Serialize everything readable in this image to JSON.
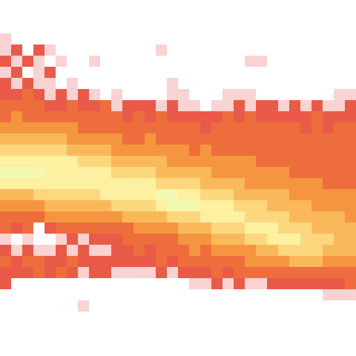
{
  "chart_data": {
    "type": "heatmap",
    "tick_labels": false,
    "grid": false,
    "xlim": [
      0,
      32
    ],
    "ylim": [
      0,
      32
    ],
    "color_range": [
      0,
      9
    ],
    "cells": [
      [
        0,
        0,
        0,
        0,
        0,
        0,
        0,
        0,
        0,
        0,
        0,
        0,
        0,
        0,
        0,
        0,
        0,
        0,
        0,
        0,
        0,
        0,
        0,
        0,
        0,
        0,
        0,
        0,
        0,
        0,
        0,
        0
      ],
      [
        0,
        0,
        0,
        0,
        0,
        0,
        0,
        0,
        0,
        0,
        0,
        0,
        0,
        0,
        0,
        0,
        0,
        0,
        0,
        0,
        0,
        0,
        0,
        0,
        0,
        0,
        0,
        0,
        0,
        0,
        0,
        0
      ],
      [
        0,
        0,
        0,
        0,
        0,
        0,
        0,
        0,
        0,
        0,
        0,
        0,
        0,
        0,
        0,
        0,
        0,
        0,
        0,
        0,
        0,
        0,
        0,
        0,
        0,
        0,
        0,
        0,
        0,
        0,
        0,
        0
      ],
      [
        1,
        0,
        0,
        0,
        0,
        0,
        0,
        0,
        0,
        0,
        0,
        0,
        0,
        0,
        0,
        0,
        0,
        0,
        0,
        0,
        0,
        0,
        0,
        0,
        0,
        0,
        0,
        0,
        0,
        0,
        0,
        0
      ],
      [
        1,
        2,
        0,
        2,
        1,
        0,
        0,
        0,
        0,
        0,
        0,
        0,
        0,
        0,
        1,
        0,
        0,
        0,
        0,
        0,
        0,
        0,
        0,
        0,
        0,
        0,
        0,
        0,
        0,
        0,
        0,
        0
      ],
      [
        2,
        1,
        2,
        1,
        0,
        1,
        0,
        0,
        1,
        0,
        0,
        0,
        0,
        0,
        0,
        0,
        0,
        0,
        0,
        0,
        0,
        0,
        1,
        1,
        0,
        0,
        0,
        0,
        0,
        0,
        0,
        0
      ],
      [
        1,
        2,
        0,
        1,
        2,
        0,
        0,
        0,
        0,
        0,
        0,
        0,
        0,
        0,
        0,
        0,
        0,
        0,
        0,
        0,
        0,
        0,
        0,
        0,
        0,
        0,
        0,
        0,
        0,
        0,
        0,
        0
      ],
      [
        2,
        1,
        2,
        1,
        1,
        0,
        1,
        0,
        0,
        0,
        0,
        0,
        0,
        0,
        0,
        1,
        0,
        0,
        0,
        0,
        0,
        0,
        0,
        0,
        0,
        0,
        0,
        0,
        0,
        0,
        0,
        0
      ],
      [
        2,
        2,
        3,
        2,
        1,
        2,
        1,
        2,
        1,
        0,
        1,
        0,
        0,
        0,
        0,
        1,
        1,
        0,
        0,
        0,
        1,
        1,
        1,
        0,
        0,
        0,
        0,
        0,
        0,
        0,
        1,
        1
      ],
      [
        3,
        3,
        3,
        3,
        2,
        2,
        3,
        2,
        2,
        3,
        1,
        2,
        2,
        2,
        1,
        2,
        1,
        1,
        0,
        1,
        1,
        2,
        1,
        2,
        2,
        1,
        2,
        1,
        2,
        1,
        1,
        2
      ],
      [
        3,
        4,
        3,
        3,
        3,
        3,
        3,
        3,
        3,
        3,
        3,
        2,
        3,
        2,
        3,
        2,
        2,
        2,
        2,
        2,
        3,
        2,
        3,
        2,
        2,
        2,
        2,
        2,
        3,
        2,
        2,
        2
      ],
      [
        4,
        4,
        4,
        4,
        4,
        4,
        4,
        3,
        3,
        3,
        3,
        3,
        3,
        3,
        3,
        3,
        3,
        3,
        2,
        3,
        3,
        3,
        3,
        3,
        3,
        3,
        3,
        2,
        3,
        2,
        3,
        3
      ],
      [
        5,
        5,
        5,
        5,
        5,
        5,
        4,
        4,
        4,
        4,
        4,
        3,
        3,
        4,
        3,
        3,
        3,
        3,
        3,
        3,
        3,
        3,
        3,
        3,
        3,
        3,
        3,
        3,
        3,
        3,
        3,
        3
      ],
      [
        6,
        6,
        6,
        6,
        6,
        6,
        5,
        5,
        5,
        5,
        4,
        4,
        4,
        4,
        4,
        4,
        4,
        3,
        4,
        3,
        3,
        3,
        3,
        3,
        3,
        3,
        3,
        3,
        3,
        3,
        3,
        3
      ],
      [
        7,
        7,
        7,
        7,
        7,
        7,
        7,
        6,
        6,
        6,
        5,
        5,
        5,
        5,
        5,
        4,
        4,
        4,
        4,
        4,
        4,
        4,
        4,
        3,
        3,
        3,
        3,
        3,
        3,
        3,
        3,
        3
      ],
      [
        8,
        8,
        8,
        8,
        7,
        7,
        7,
        7,
        7,
        7,
        6,
        6,
        6,
        6,
        5,
        5,
        5,
        5,
        5,
        4,
        4,
        4,
        4,
        4,
        4,
        4,
        3,
        3,
        3,
        3,
        3,
        3
      ],
      [
        7,
        7,
        7,
        7,
        7,
        7,
        7,
        7,
        7,
        7,
        7,
        7,
        7,
        7,
        6,
        6,
        6,
        6,
        5,
        5,
        5,
        5,
        4,
        4,
        4,
        4,
        4,
        4,
        4,
        3,
        3,
        3
      ],
      [
        5,
        5,
        5,
        6,
        6,
        6,
        6,
        6,
        6,
        7,
        7,
        7,
        7,
        7,
        8,
        8,
        7,
        7,
        6,
        6,
        6,
        5,
        5,
        5,
        5,
        5,
        4,
        4,
        4,
        4,
        4,
        4
      ],
      [
        4,
        4,
        4,
        4,
        5,
        5,
        5,
        5,
        5,
        5,
        6,
        6,
        6,
        6,
        7,
        8,
        8,
        8,
        7,
        7,
        7,
        6,
        6,
        6,
        5,
        5,
        5,
        5,
        4,
        4,
        4,
        4
      ],
      [
        3,
        3,
        3,
        3,
        4,
        4,
        4,
        4,
        4,
        4,
        4,
        5,
        5,
        5,
        5,
        6,
        6,
        6,
        7,
        7,
        7,
        7,
        6,
        6,
        6,
        6,
        5,
        5,
        5,
        5,
        5,
        4
      ],
      [
        3,
        2,
        3,
        0,
        2,
        3,
        3,
        3,
        3,
        3,
        3,
        3,
        4,
        4,
        4,
        4,
        5,
        5,
        5,
        6,
        6,
        6,
        7,
        7,
        7,
        6,
        6,
        6,
        5,
        5,
        5,
        5
      ],
      [
        1,
        0,
        1,
        0,
        0,
        1,
        2,
        1,
        2,
        2,
        2,
        3,
        3,
        3,
        3,
        3,
        4,
        4,
        4,
        5,
        5,
        5,
        6,
        6,
        7,
        7,
        7,
        6,
        6,
        6,
        5,
        5
      ],
      [
        2,
        1,
        2,
        1,
        1,
        2,
        1,
        2,
        1,
        1,
        2,
        2,
        3,
        2,
        3,
        3,
        3,
        4,
        3,
        4,
        4,
        4,
        4,
        5,
        5,
        6,
        6,
        6,
        6,
        5,
        5,
        5
      ],
      [
        3,
        2,
        3,
        3,
        2,
        2,
        3,
        2,
        2,
        2,
        2,
        2,
        2,
        2,
        3,
        2,
        3,
        3,
        3,
        3,
        3,
        3,
        4,
        4,
        4,
        4,
        5,
        5,
        5,
        4,
        4,
        4
      ],
      [
        2,
        2,
        2,
        3,
        2,
        3,
        2,
        1,
        2,
        2,
        1,
        1,
        1,
        1,
        2,
        1,
        2,
        2,
        2,
        3,
        2,
        3,
        3,
        3,
        3,
        3,
        3,
        3,
        3,
        3,
        3,
        3
      ],
      [
        2,
        0,
        0,
        0,
        0,
        0,
        0,
        0,
        0,
        0,
        0,
        0,
        0,
        0,
        0,
        0,
        0,
        1,
        1,
        2,
        1,
        2,
        1,
        1,
        2,
        2,
        2,
        2,
        2,
        2,
        2,
        3
      ],
      [
        0,
        0,
        0,
        0,
        0,
        0,
        0,
        0,
        0,
        0,
        0,
        0,
        0,
        0,
        0,
        0,
        0,
        0,
        0,
        0,
        0,
        0,
        0,
        0,
        0,
        0,
        0,
        0,
        0,
        1,
        1,
        1
      ],
      [
        0,
        0,
        0,
        0,
        0,
        0,
        0,
        1,
        0,
        0,
        0,
        0,
        0,
        0,
        0,
        0,
        0,
        0,
        0,
        0,
        0,
        0,
        0,
        0,
        0,
        0,
        0,
        0,
        0,
        0,
        0,
        0
      ],
      [
        0,
        0,
        0,
        0,
        0,
        0,
        0,
        0,
        0,
        0,
        0,
        0,
        0,
        0,
        0,
        0,
        0,
        0,
        0,
        0,
        0,
        0,
        0,
        0,
        0,
        0,
        0,
        0,
        0,
        0,
        0,
        0
      ],
      [
        0,
        0,
        0,
        0,
        0,
        0,
        0,
        0,
        0,
        0,
        0,
        0,
        0,
        0,
        0,
        0,
        0,
        0,
        0,
        0,
        0,
        0,
        0,
        0,
        0,
        0,
        0,
        0,
        0,
        0,
        0,
        0
      ],
      [
        0,
        0,
        0,
        0,
        0,
        0,
        0,
        0,
        0,
        0,
        0,
        0,
        0,
        0,
        0,
        0,
        0,
        0,
        0,
        0,
        0,
        0,
        0,
        0,
        0,
        0,
        0,
        0,
        0,
        0,
        0,
        0
      ],
      [
        0,
        0,
        0,
        0,
        0,
        0,
        0,
        0,
        0,
        0,
        0,
        0,
        0,
        0,
        0,
        0,
        0,
        0,
        0,
        0,
        0,
        0,
        0,
        0,
        0,
        0,
        0,
        0,
        0,
        0,
        0,
        0
      ]
    ]
  }
}
